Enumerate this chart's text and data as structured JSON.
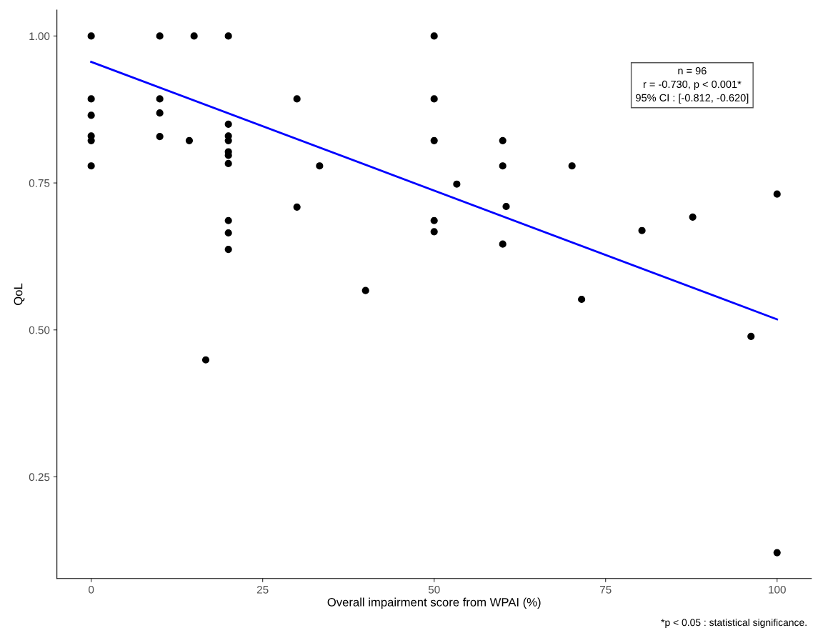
{
  "chart_data": {
    "type": "scatter",
    "xlabel": "Overall impairment score from WPAI (%)",
    "ylabel": "QoL",
    "xlim": [
      -5,
      105
    ],
    "xticks": [
      0,
      25,
      50,
      75,
      100
    ],
    "ylim": [
      0.077,
      1.044
    ],
    "yticks": [
      {
        "value": 0.25,
        "label": "0.25"
      },
      {
        "value": 0.5,
        "label": "0.50"
      },
      {
        "value": 0.75,
        "label": "0.75"
      },
      {
        "value": 1.0,
        "label": "1.00"
      }
    ],
    "grid": false,
    "legend": false,
    "marker": "circle",
    "series": [
      {
        "color": "#000000",
        "x": [
          0,
          0,
          0,
          0,
          0,
          0,
          10,
          10,
          10,
          10,
          14.3,
          15,
          16.7,
          20,
          20,
          20,
          20,
          20,
          20,
          20,
          20,
          20,
          20,
          30,
          30,
          33.3,
          40,
          50,
          50,
          50,
          50,
          50,
          53.3,
          60,
          60,
          60,
          60.5,
          70.1,
          71.5,
          80.3,
          87.7,
          96.2,
          100,
          100
        ],
        "values": [
          1.0,
          0.893,
          0.865,
          0.83,
          0.822,
          0.779,
          1.0,
          0.893,
          0.869,
          0.829,
          0.822,
          1.0,
          0.449,
          1.0,
          0.85,
          0.83,
          0.822,
          0.803,
          0.797,
          0.783,
          0.686,
          0.665,
          0.637,
          0.893,
          0.709,
          0.779,
          0.567,
          1.0,
          0.893,
          0.822,
          0.686,
          0.667,
          0.748,
          0.822,
          0.779,
          0.646,
          0.71,
          0.779,
          0.552,
          0.669,
          0.692,
          0.489,
          0.731,
          0.121
        ]
      },
      {
        "type": "line",
        "color": "#0000ff",
        "x": [
          0,
          100
        ],
        "values": [
          0.956,
          0.518
        ],
        "line_style": "solid",
        "marker": "none"
      }
    ],
    "annotations": [
      "n = 96\nr = -0.730, p < 0.001*\n95% CI : [-0.812, -0.620]",
      "*p < 0.05 : statistical significance."
    ]
  }
}
